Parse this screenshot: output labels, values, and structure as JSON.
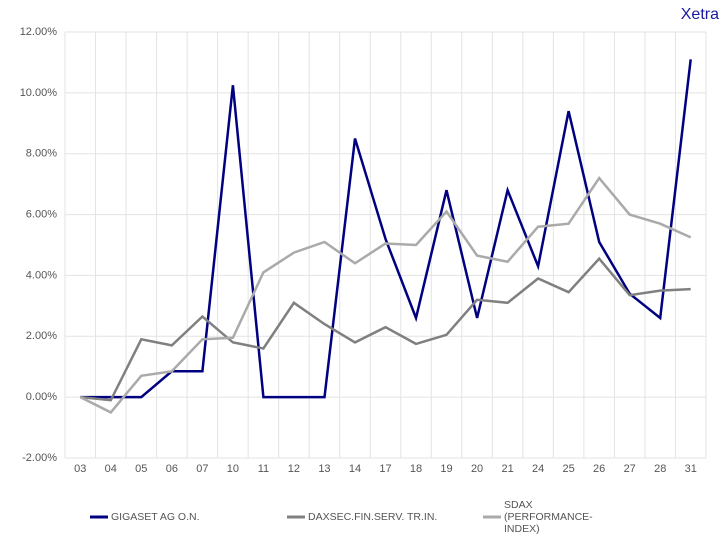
{
  "chart_data": {
    "type": "line",
    "corner_label": "Xetra",
    "categories": [
      "03",
      "04",
      "05",
      "06",
      "07",
      "10",
      "11",
      "12",
      "13",
      "14",
      "17",
      "18",
      "19",
      "20",
      "21",
      "24",
      "25",
      "26",
      "27",
      "28",
      "31"
    ],
    "series": [
      {
        "name": "GIGASET AG O.N.",
        "color": "#000080",
        "values": [
          0,
          0,
          0,
          0.85,
          0.85,
          10.25,
          0,
          0,
          0,
          8.5,
          5.2,
          2.6,
          6.8,
          2.6,
          6.8,
          4.3,
          9.4,
          5.1,
          3.4,
          2.6,
          11.1
        ]
      },
      {
        "name": "DAXSEC.FIN.SERV. TR.IN.",
        "color": "#808080",
        "values": [
          0,
          -0.1,
          1.9,
          1.7,
          2.65,
          1.8,
          1.6,
          3.1,
          2.4,
          1.8,
          2.3,
          1.75,
          2.05,
          3.2,
          3.1,
          3.9,
          3.45,
          4.55,
          3.35,
          3.5,
          3.55
        ]
      },
      {
        "name": "SDAX (PERFORMANCE-INDEX)",
        "color": "#aaaaaa",
        "values": [
          0,
          -0.5,
          0.7,
          0.85,
          1.9,
          1.95,
          4.1,
          4.75,
          5.1,
          4.4,
          5.05,
          5.0,
          6.1,
          4.65,
          4.45,
          5.6,
          5.7,
          7.2,
          6.0,
          5.7,
          5.25
        ]
      }
    ],
    "ylim": [
      -2,
      12
    ],
    "yticks": [
      {
        "value": -2,
        "label": "-2.00%"
      },
      {
        "value": 0,
        "label": "0.00%"
      },
      {
        "value": 2,
        "label": "2.00%"
      },
      {
        "value": 4,
        "label": "4.00%"
      },
      {
        "value": 6,
        "label": "6.00%"
      },
      {
        "value": 8,
        "label": "8.00%"
      },
      {
        "value": 10,
        "label": "10.00%"
      },
      {
        "value": 12,
        "label": "12.00%"
      }
    ],
    "grid": true,
    "legend": "bottom"
  }
}
